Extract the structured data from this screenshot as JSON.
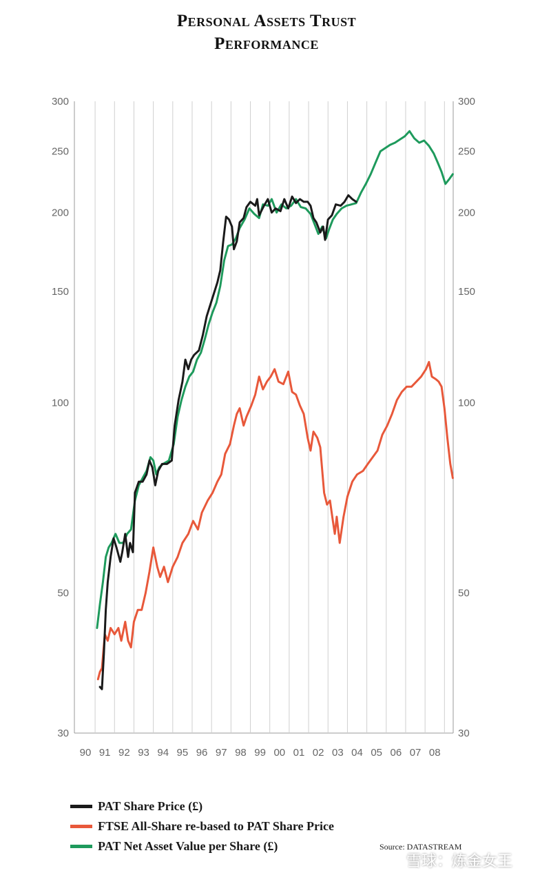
{
  "chart_data": {
    "type": "line",
    "title_line1": "Personal Assets Trust",
    "title_line2": "Performance",
    "y_scale": "log",
    "ylim": [
      30,
      300
    ],
    "y_ticks": [
      300,
      250,
      200,
      150,
      100,
      50,
      30
    ],
    "y_tick_labels": [
      "300",
      "250",
      "200",
      "150",
      "100",
      "50",
      "30"
    ],
    "xlim": [
      1990,
      2008.95
    ],
    "x_ticks": [
      1990,
      1991,
      1992,
      1993,
      1994,
      1995,
      1996,
      1997,
      1998,
      1999,
      2000,
      2001,
      2002,
      2003,
      2004,
      2005,
      2006,
      2007,
      2008
    ],
    "x_tick_labels": [
      "90",
      "91",
      "92",
      "93",
      "94",
      "95",
      "96",
      "97",
      "98",
      "99",
      "00",
      "01",
      "02",
      "03",
      "04",
      "05",
      "06",
      "07",
      "08"
    ],
    "grid": "vertical",
    "series": [
      {
        "name": "PAT Share Price (£)",
        "color": "#1a1a1a",
        "points": [
          [
            1990.75,
            35.5
          ],
          [
            1990.85,
            35.2
          ],
          [
            1990.95,
            40
          ],
          [
            1991.05,
            47
          ],
          [
            1991.15,
            52
          ],
          [
            1991.3,
            57
          ],
          [
            1991.45,
            61
          ],
          [
            1991.6,
            59
          ],
          [
            1991.8,
            56
          ],
          [
            1991.9,
            58
          ],
          [
            1992.05,
            62
          ],
          [
            1992.2,
            57
          ],
          [
            1992.3,
            60
          ],
          [
            1992.45,
            58
          ],
          [
            1992.55,
            72
          ],
          [
            1992.75,
            75
          ],
          [
            1992.95,
            75
          ],
          [
            1993.15,
            77
          ],
          [
            1993.3,
            81
          ],
          [
            1993.45,
            79
          ],
          [
            1993.6,
            74
          ],
          [
            1993.75,
            78
          ],
          [
            1993.95,
            80
          ],
          [
            1994.2,
            80
          ],
          [
            1994.45,
            81
          ],
          [
            1994.6,
            92
          ],
          [
            1994.8,
            101
          ],
          [
            1995.0,
            108
          ],
          [
            1995.15,
            117
          ],
          [
            1995.3,
            113
          ],
          [
            1995.45,
            117
          ],
          [
            1995.6,
            119
          ],
          [
            1995.85,
            121
          ],
          [
            1996.05,
            128
          ],
          [
            1996.25,
            137
          ],
          [
            1996.5,
            145
          ],
          [
            1996.8,
            155
          ],
          [
            1996.95,
            162
          ],
          [
            1997.1,
            180
          ],
          [
            1997.25,
            197
          ],
          [
            1997.4,
            195
          ],
          [
            1997.55,
            190
          ],
          [
            1997.65,
            175
          ],
          [
            1997.8,
            180
          ],
          [
            1997.95,
            193
          ],
          [
            1998.15,
            196
          ],
          [
            1998.3,
            204
          ],
          [
            1998.5,
            208
          ],
          [
            1998.75,
            205
          ],
          [
            1998.85,
            210
          ],
          [
            1998.95,
            198
          ],
          [
            1999.2,
            205
          ],
          [
            1999.4,
            210
          ],
          [
            1999.6,
            200
          ],
          [
            1999.8,
            203
          ],
          [
            2000.05,
            201
          ],
          [
            2000.25,
            210
          ],
          [
            2000.45,
            203
          ],
          [
            2000.65,
            212
          ],
          [
            2000.85,
            207
          ],
          [
            2001.05,
            210
          ],
          [
            2001.25,
            208
          ],
          [
            2001.45,
            208
          ],
          [
            2001.6,
            205
          ],
          [
            2001.75,
            196
          ],
          [
            2001.9,
            193
          ],
          [
            2002.1,
            186
          ],
          [
            2002.25,
            190
          ],
          [
            2002.35,
            181
          ],
          [
            2002.5,
            195
          ],
          [
            2002.7,
            198
          ],
          [
            2002.9,
            206
          ],
          [
            2003.15,
            205
          ],
          [
            2003.35,
            208
          ],
          [
            2003.55,
            213
          ],
          [
            2003.75,
            210
          ],
          [
            2003.95,
            208
          ]
        ]
      },
      {
        "name": "FTSE All-Share re-based to PAT Share Price",
        "color": "#e8583a",
        "points": [
          [
            1990.65,
            36.5
          ],
          [
            1990.75,
            37.5
          ],
          [
            1990.85,
            38
          ],
          [
            1991.0,
            43
          ],
          [
            1991.15,
            42
          ],
          [
            1991.3,
            44
          ],
          [
            1991.5,
            43
          ],
          [
            1991.7,
            44
          ],
          [
            1991.85,
            42
          ],
          [
            1992.05,
            45
          ],
          [
            1992.2,
            42
          ],
          [
            1992.35,
            41
          ],
          [
            1992.5,
            45
          ],
          [
            1992.7,
            47
          ],
          [
            1992.9,
            47
          ],
          [
            1993.1,
            50
          ],
          [
            1993.3,
            54
          ],
          [
            1993.5,
            59
          ],
          [
            1993.7,
            55
          ],
          [
            1993.85,
            53
          ],
          [
            1994.05,
            55
          ],
          [
            1994.25,
            52
          ],
          [
            1994.5,
            55
          ],
          [
            1994.75,
            57
          ],
          [
            1995.0,
            60
          ],
          [
            1995.3,
            62
          ],
          [
            1995.55,
            65
          ],
          [
            1995.8,
            63
          ],
          [
            1996.0,
            67
          ],
          [
            1996.3,
            70
          ],
          [
            1996.55,
            72
          ],
          [
            1996.8,
            75
          ],
          [
            1997.0,
            77
          ],
          [
            1997.2,
            83
          ],
          [
            1997.45,
            86
          ],
          [
            1997.65,
            92
          ],
          [
            1997.8,
            96
          ],
          [
            1997.95,
            98
          ],
          [
            1998.15,
            92
          ],
          [
            1998.3,
            95
          ],
          [
            1998.55,
            99
          ],
          [
            1998.75,
            103
          ],
          [
            1998.95,
            110
          ],
          [
            1999.15,
            105
          ],
          [
            1999.35,
            108
          ],
          [
            1999.55,
            110
          ],
          [
            1999.75,
            113
          ],
          [
            1999.95,
            108
          ],
          [
            2000.2,
            107
          ],
          [
            2000.45,
            112
          ],
          [
            2000.65,
            104
          ],
          [
            2000.85,
            103
          ],
          [
            2001.05,
            99
          ],
          [
            2001.25,
            96
          ],
          [
            2001.45,
            88
          ],
          [
            2001.6,
            84
          ],
          [
            2001.75,
            90
          ],
          [
            2001.95,
            88
          ],
          [
            2002.1,
            85
          ],
          [
            2002.3,
            72
          ],
          [
            2002.45,
            69
          ],
          [
            2002.6,
            70
          ],
          [
            2002.75,
            65
          ],
          [
            2002.85,
            62
          ],
          [
            2002.95,
            66
          ],
          [
            2003.1,
            60
          ],
          [
            2003.3,
            66
          ],
          [
            2003.5,
            71
          ],
          [
            2003.75,
            75
          ],
          [
            2004.0,
            77
          ],
          [
            2004.3,
            78
          ],
          [
            2004.55,
            80
          ],
          [
            2004.8,
            82
          ],
          [
            2005.05,
            84
          ],
          [
            2005.3,
            89
          ],
          [
            2005.55,
            92
          ],
          [
            2005.8,
            96
          ],
          [
            2006.05,
            101
          ],
          [
            2006.3,
            104
          ],
          [
            2006.55,
            106
          ],
          [
            2006.8,
            106
          ],
          [
            2007.05,
            108
          ],
          [
            2007.3,
            110
          ],
          [
            2007.55,
            113
          ],
          [
            2007.7,
            116
          ],
          [
            2007.85,
            110
          ],
          [
            2008.05,
            109
          ],
          [
            2008.2,
            108
          ],
          [
            2008.35,
            106
          ],
          [
            2008.5,
            98
          ],
          [
            2008.65,
            88
          ],
          [
            2008.8,
            80
          ],
          [
            2008.93,
            76
          ]
        ]
      },
      {
        "name": "PAT Net Asset Value per Share (£)",
        "color": "#1e9a5c",
        "points": [
          [
            1990.6,
            44
          ],
          [
            1990.75,
            48
          ],
          [
            1990.9,
            52
          ],
          [
            1991.05,
            57
          ],
          [
            1991.2,
            59
          ],
          [
            1991.35,
            60
          ],
          [
            1991.55,
            62
          ],
          [
            1991.75,
            60
          ],
          [
            1991.95,
            60
          ],
          [
            1992.15,
            62
          ],
          [
            1992.35,
            63
          ],
          [
            1992.55,
            70
          ],
          [
            1992.75,
            74
          ],
          [
            1992.95,
            76
          ],
          [
            1993.15,
            78
          ],
          [
            1993.35,
            82
          ],
          [
            1993.5,
            81
          ],
          [
            1993.65,
            77
          ],
          [
            1993.8,
            79
          ],
          [
            1994.0,
            80
          ],
          [
            1994.3,
            81
          ],
          [
            1994.55,
            86
          ],
          [
            1994.75,
            95
          ],
          [
            1994.95,
            101
          ],
          [
            1995.15,
            106
          ],
          [
            1995.35,
            110
          ],
          [
            1995.55,
            112
          ],
          [
            1995.75,
            117
          ],
          [
            1995.95,
            120
          ],
          [
            1996.15,
            126
          ],
          [
            1996.35,
            133
          ],
          [
            1996.55,
            139
          ],
          [
            1996.75,
            144
          ],
          [
            1996.95,
            153
          ],
          [
            1997.15,
            168
          ],
          [
            1997.35,
            177
          ],
          [
            1997.55,
            178
          ],
          [
            1997.75,
            182
          ],
          [
            1997.95,
            189
          ],
          [
            1998.2,
            195
          ],
          [
            1998.45,
            203
          ],
          [
            1998.7,
            199
          ],
          [
            1998.95,
            196
          ],
          [
            1999.15,
            206
          ],
          [
            1999.4,
            205
          ],
          [
            1999.6,
            210
          ],
          [
            1999.85,
            200
          ],
          [
            2000.1,
            206
          ],
          [
            2000.35,
            203
          ],
          [
            2000.6,
            205
          ],
          [
            2000.85,
            210
          ],
          [
            2001.1,
            204
          ],
          [
            2001.35,
            203
          ],
          [
            2001.6,
            199
          ],
          [
            2001.8,
            192
          ],
          [
            2002.0,
            185
          ],
          [
            2002.2,
            190
          ],
          [
            2002.4,
            182
          ],
          [
            2002.55,
            188
          ],
          [
            2002.75,
            195
          ],
          [
            2002.95,
            199
          ],
          [
            2003.2,
            203
          ],
          [
            2003.45,
            205
          ],
          [
            2003.7,
            206
          ],
          [
            2003.95,
            207
          ],
          [
            2004.2,
            215
          ],
          [
            2004.45,
            222
          ],
          [
            2004.7,
            230
          ],
          [
            2004.95,
            240
          ],
          [
            2005.2,
            250
          ],
          [
            2005.45,
            253
          ],
          [
            2005.7,
            256
          ],
          [
            2005.95,
            258
          ],
          [
            2006.2,
            261
          ],
          [
            2006.45,
            264
          ],
          [
            2006.7,
            269
          ],
          [
            2006.95,
            262
          ],
          [
            2007.2,
            258
          ],
          [
            2007.45,
            260
          ],
          [
            2007.7,
            255
          ],
          [
            2007.95,
            248
          ],
          [
            2008.15,
            240
          ],
          [
            2008.35,
            232
          ],
          [
            2008.55,
            222
          ],
          [
            2008.75,
            226
          ],
          [
            2008.93,
            230
          ]
        ]
      }
    ]
  },
  "legend": [
    {
      "label": "PAT Share Price (£)",
      "color": "#1a1a1a"
    },
    {
      "label": "FTSE All-Share re-based to PAT Share Price",
      "color": "#e8583a"
    },
    {
      "label": "PAT Net Asset Value per Share (£)",
      "color": "#1e9a5c"
    }
  ],
  "source": "Source: DATASTREAM",
  "watermark": "雪球：炼金女王"
}
